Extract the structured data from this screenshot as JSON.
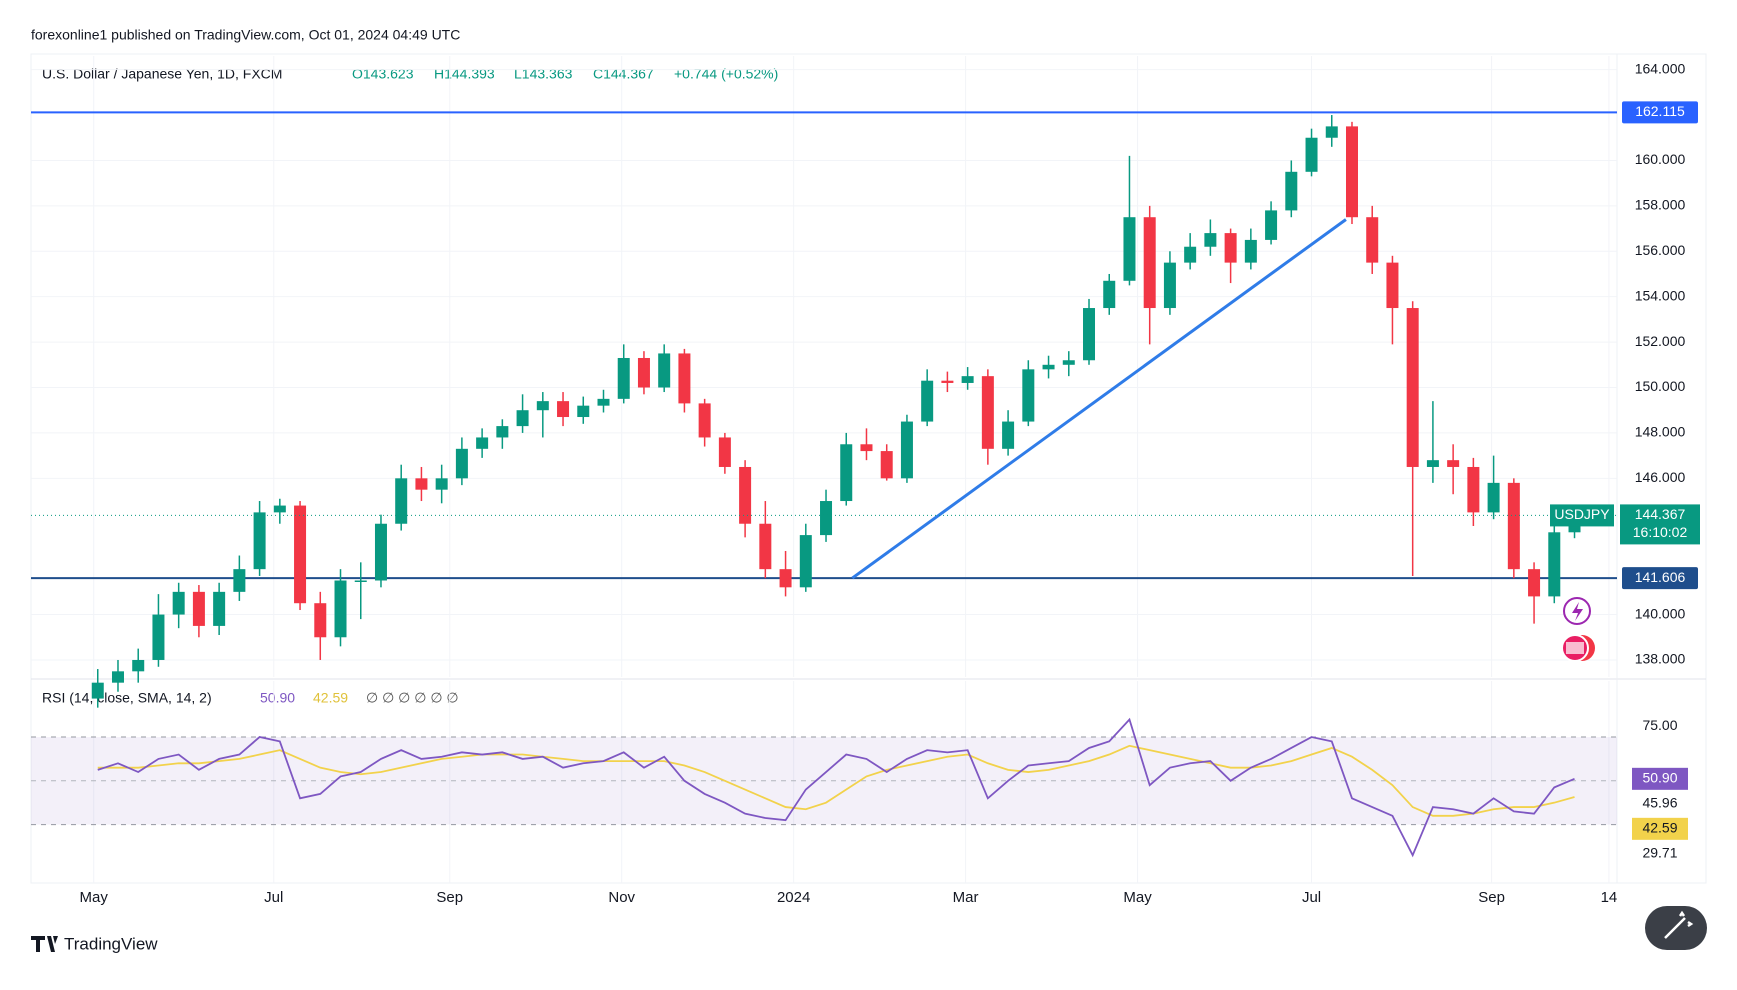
{
  "chart_data": {
    "type": "candlestick",
    "header": "forexonline1 published on TradingView.com, Oct 01, 2024 04:49 UTC",
    "legend": {
      "name": "U.S. Dollar / Japanese Yen, 1D, FXCM",
      "o": "O143.623",
      "h": "H144.393",
      "l": "L143.363",
      "c": "C144.367",
      "change": "+0.744 (+0.52%)"
    },
    "categories": [
      null,
      null,
      null,
      null,
      null,
      null,
      null,
      null,
      null,
      null,
      null,
      null,
      null,
      null,
      null,
      null,
      null,
      null,
      null,
      null,
      null,
      null,
      null,
      null,
      null,
      null,
      null,
      null,
      null,
      null,
      null,
      null,
      null,
      null,
      null,
      null,
      null,
      null,
      null,
      null,
      null,
      null,
      null,
      null,
      null,
      null,
      null,
      null,
      null,
      null,
      null,
      null,
      null,
      null,
      null,
      null,
      null,
      null,
      null,
      null,
      null,
      null,
      null,
      null,
      null,
      null,
      null,
      null,
      null,
      null,
      null,
      null,
      null,
      null
    ],
    "open": [
      136.3,
      137.0,
      137.5,
      138.0,
      140.0,
      141.0,
      139.5,
      141.0,
      142.0,
      144.5,
      144.8,
      140.5,
      139.0,
      141.5,
      141.5,
      144.0,
      146.0,
      145.5,
      146.0,
      147.3,
      147.8,
      148.3,
      149.0,
      149.4,
      148.7,
      149.2,
      149.5,
      151.3,
      150.0,
      151.5,
      149.3,
      147.8,
      146.5,
      144.0,
      142.0,
      141.2,
      143.5,
      145.0,
      147.5,
      147.2,
      146.0,
      148.5,
      150.3,
      150.2,
      150.5,
      147.3,
      148.5,
      150.8,
      151.0,
      151.2,
      153.5,
      154.7,
      157.5,
      153.5,
      155.5,
      156.2,
      156.8,
      155.5,
      156.5,
      157.8,
      159.5,
      161.0,
      161.5,
      157.5,
      155.5,
      153.5,
      146.5,
      146.8,
      146.5,
      144.5,
      145.8,
      142.0,
      140.8,
      143.623
    ],
    "high": [
      137.6,
      138.0,
      138.5,
      140.9,
      141.4,
      141.3,
      141.4,
      142.6,
      145.0,
      145.1,
      145.0,
      141.0,
      142.0,
      142.3,
      144.4,
      146.6,
      146.5,
      146.6,
      147.8,
      148.2,
      148.6,
      149.7,
      149.8,
      149.8,
      149.6,
      149.9,
      151.9,
      151.6,
      151.9,
      151.7,
      149.5,
      148.0,
      146.8,
      145.0,
      142.8,
      144.0,
      145.5,
      148.0,
      148.2,
      147.5,
      148.8,
      150.8,
      150.7,
      150.9,
      150.8,
      149.0,
      151.2,
      151.4,
      151.6,
      153.9,
      155.0,
      160.2,
      158.0,
      156.0,
      156.8,
      157.4,
      157.0,
      157.0,
      158.2,
      160.0,
      161.4,
      162.0,
      161.7,
      158.0,
      155.8,
      153.8,
      149.4,
      147.5,
      146.9,
      147.0,
      146.0,
      142.3,
      144.0,
      144.393
    ],
    "low": [
      135.9,
      136.6,
      137.0,
      137.7,
      139.4,
      139.0,
      139.1,
      140.6,
      141.7,
      144.0,
      140.2,
      138.0,
      138.6,
      139.8,
      141.2,
      143.7,
      145.0,
      144.9,
      145.7,
      146.9,
      147.3,
      148.0,
      147.8,
      148.3,
      148.4,
      148.9,
      149.3,
      149.7,
      149.8,
      148.9,
      147.4,
      146.2,
      143.4,
      141.6,
      140.8,
      141.0,
      143.2,
      144.8,
      146.8,
      145.9,
      145.8,
      148.3,
      149.8,
      149.9,
      146.6,
      147.0,
      148.3,
      150.4,
      150.5,
      151.0,
      153.2,
      154.5,
      151.9,
      153.2,
      155.2,
      155.8,
      154.6,
      155.2,
      156.3,
      157.5,
      159.3,
      160.6,
      157.2,
      155.0,
      151.9,
      141.7,
      145.8,
      145.3,
      143.9,
      144.2,
      141.6,
      139.6,
      140.5,
      143.363
    ],
    "close": [
      137.0,
      137.5,
      138.0,
      140.0,
      141.0,
      139.5,
      141.0,
      142.0,
      144.5,
      144.8,
      140.5,
      139.0,
      141.5,
      141.5,
      144.0,
      146.0,
      145.5,
      146.0,
      147.3,
      147.8,
      148.3,
      149.0,
      149.4,
      148.7,
      149.2,
      149.5,
      151.3,
      150.0,
      151.5,
      149.3,
      147.8,
      146.5,
      144.0,
      142.0,
      141.2,
      143.5,
      145.0,
      147.5,
      147.2,
      146.0,
      148.5,
      150.3,
      150.2,
      150.5,
      147.3,
      148.5,
      150.8,
      151.0,
      151.2,
      153.5,
      154.7,
      157.5,
      153.5,
      155.5,
      156.2,
      156.8,
      155.5,
      156.5,
      157.8,
      159.5,
      161.0,
      161.5,
      157.5,
      155.5,
      153.5,
      146.5,
      146.8,
      146.5,
      144.5,
      145.8,
      142.0,
      140.8,
      143.623,
      144.367
    ],
    "up_color": "#089981",
    "down_color": "#f23645",
    "xlim": [
      -3.3,
      75.1
    ],
    "xticks": [
      {
        "value": -0.2,
        "label": "May"
      },
      {
        "value": 8.7,
        "label": "Jul"
      },
      {
        "value": 17.4,
        "label": "Sep"
      },
      {
        "value": 25.9,
        "label": "Nov"
      },
      {
        "value": 34.4,
        "label": "2024"
      },
      {
        "value": 42.9,
        "label": "Mar"
      },
      {
        "value": 51.4,
        "label": "May"
      },
      {
        "value": 60.0,
        "label": "Jul"
      },
      {
        "value": 68.9,
        "label": "Sep"
      },
      {
        "value": 74.7,
        "label": "14"
      }
    ],
    "ylim": [
      137.25,
      164.6
    ],
    "yticks": [
      {
        "value": 138,
        "label": "138.000"
      },
      {
        "value": 140,
        "label": "140.000"
      },
      {
        "value": 146,
        "label": "146.000"
      },
      {
        "value": 148,
        "label": "148.000"
      },
      {
        "value": 150,
        "label": "150.000"
      },
      {
        "value": 152,
        "label": "152.000"
      },
      {
        "value": 154,
        "label": "154.000"
      },
      {
        "value": 156,
        "label": "156.000"
      },
      {
        "value": 158,
        "label": "158.000"
      },
      {
        "value": 160,
        "label": "160.000"
      },
      {
        "value": 164,
        "label": "164.000"
      }
    ],
    "grid": true,
    "hlines": [
      {
        "value": 162.115,
        "color": "#2962ff"
      },
      {
        "value": 141.606,
        "color": "#1f4e8c"
      }
    ],
    "trendline": {
      "x": [
        37.3,
        61.7
      ],
      "y": [
        141.606,
        157.4
      ],
      "color": "#2f7ce8"
    },
    "symbol_tag": "USDJPY",
    "countdown": "16:10:02",
    "rsi": {
      "legend": "RSI (14, close, SMA, 14, 2)",
      "symbols": "∅  ∅  ∅  ∅  ∅  ∅",
      "color": "#7e57c2",
      "sma_color": "#f2d24b",
      "values": [
        55,
        58,
        54,
        60,
        62,
        55,
        60,
        62,
        70,
        68,
        42,
        44,
        52,
        54,
        60,
        64,
        60,
        61,
        63,
        62,
        63,
        60,
        61,
        56,
        58,
        59,
        63,
        56,
        61,
        50,
        44,
        40,
        35,
        33,
        32,
        46,
        54,
        62,
        60,
        54,
        60,
        64,
        63,
        64,
        42,
        50,
        57,
        58,
        59,
        65,
        68,
        78,
        48,
        56,
        58,
        59,
        50,
        56,
        60,
        65,
        70,
        68,
        42,
        38,
        34,
        16,
        38,
        37,
        35,
        42,
        36,
        35,
        47,
        50.9
      ],
      "sma": [
        56,
        56,
        56,
        57,
        58,
        58,
        59,
        60,
        62,
        64,
        60,
        56,
        54,
        53,
        54,
        56,
        58,
        60,
        61,
        62,
        62,
        62,
        61,
        60,
        59,
        59,
        59,
        59,
        59,
        57,
        54,
        50,
        46,
        42,
        38,
        37,
        40,
        46,
        52,
        55,
        57,
        59,
        61,
        62,
        58,
        55,
        54,
        55,
        57,
        59,
        62,
        66,
        64,
        62,
        60,
        58,
        56,
        56,
        57,
        59,
        62,
        65,
        61,
        55,
        48,
        38,
        34,
        34,
        35,
        37,
        38,
        38,
        40,
        42.59
      ],
      "last_value_label": "50.90",
      "sma_last_label": "42.59",
      "ylim": [
        3.3,
        95.6
      ],
      "yticks": [
        {
          "value": 75,
          "label": "75.00"
        },
        {
          "value": 45.96,
          "label": "45.96"
        },
        {
          "value": 29.71,
          "label": "29.71"
        }
      ],
      "bands": [
        30,
        70
      ],
      "mid": 50
    },
    "footer": "TradingView"
  }
}
